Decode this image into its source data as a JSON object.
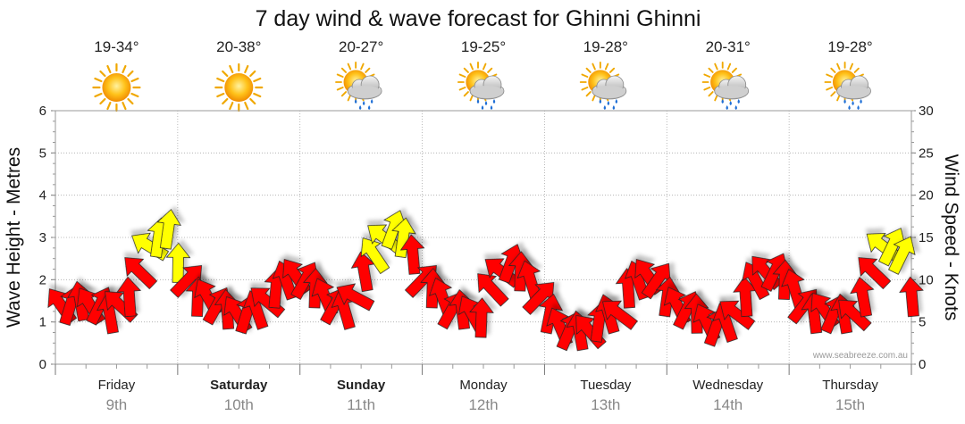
{
  "title": "7 day wind & wave forecast for Ghinni Ghinni",
  "credit": "www.seabreeze.com.au",
  "days": [
    {
      "day": "Friday",
      "date": "9th",
      "temp": "19-34°",
      "icon": "sunny-icon",
      "bold": false
    },
    {
      "day": "Saturday",
      "date": "10th",
      "temp": "20-38°",
      "icon": "sunny-icon",
      "bold": true
    },
    {
      "day": "Sunday",
      "date": "11th",
      "temp": "20-27°",
      "icon": "sun-cloud-rain-icon",
      "bold": true
    },
    {
      "day": "Monday",
      "date": "12th",
      "temp": "19-25°",
      "icon": "sun-cloud-rain-icon",
      "bold": false
    },
    {
      "day": "Tuesday",
      "date": "13th",
      "temp": "19-28°",
      "icon": "sun-cloud-rain-icon",
      "bold": false
    },
    {
      "day": "Wednesday",
      "date": "14th",
      "temp": "20-31°",
      "icon": "sun-cloud-rain-icon",
      "bold": false
    },
    {
      "day": "Thursday",
      "date": "15th",
      "temp": "19-28°",
      "icon": "sun-cloud-rain-icon",
      "bold": false
    }
  ],
  "colors": {
    "arrow_low": "#ff0000",
    "arrow_high": "#ffff00",
    "grid": "#999999"
  },
  "chart_data": {
    "type": "line",
    "title": "7 day wind & wave forecast for Ghinni Ghinni",
    "ylabel_left": "Wave Height - Metres",
    "ylabel_right": "Wind Speed - Knots",
    "ylim_left": [
      0,
      6
    ],
    "ylim_right": [
      0,
      30
    ],
    "yticks_left": [
      "0",
      "1",
      "2",
      "3",
      "4",
      "5",
      "6"
    ],
    "yticks_right": [
      "0",
      "5",
      "10",
      "15",
      "20",
      "25",
      "30"
    ],
    "grid": true,
    "series": [
      {
        "name": "Wind Speed - Knots",
        "axis": "right",
        "x_days": [
          0.0,
          0.08,
          0.16,
          0.24,
          0.32,
          0.4,
          0.48,
          0.56,
          0.64,
          0.72,
          0.8,
          0.88,
          0.96,
          1.04,
          1.12,
          1.2,
          1.28,
          1.36,
          1.44,
          1.52,
          1.6,
          1.68,
          1.76,
          1.84,
          1.92,
          2.0,
          2.08,
          2.16,
          2.24,
          2.32,
          2.4,
          2.48,
          2.56,
          2.64,
          2.72,
          2.8,
          2.88,
          2.96,
          3.04,
          3.12,
          3.2,
          3.28,
          3.36,
          3.44,
          3.52,
          3.6,
          3.68,
          3.76,
          3.84,
          3.92,
          4.0,
          4.08,
          4.16,
          4.24,
          4.32,
          4.4,
          4.48,
          4.56,
          4.64,
          4.72,
          4.8,
          4.88,
          4.96,
          5.04,
          5.12,
          5.2,
          5.28,
          5.36,
          5.44,
          5.52,
          5.6,
          5.68,
          5.76,
          5.84,
          5.92,
          6.0,
          6.08,
          6.16,
          6.24,
          6.32,
          6.4,
          6.48,
          6.56,
          6.64,
          6.72,
          6.8,
          6.88,
          6.96
        ],
        "values": [
          7,
          7,
          7.5,
          7,
          7,
          6,
          7,
          8,
          11,
          14,
          15,
          16,
          12,
          10,
          8,
          8,
          7,
          6.5,
          6,
          6,
          6.5,
          7.5,
          9,
          10,
          10.5,
          10,
          9,
          8,
          7,
          6.5,
          8,
          11,
          13,
          15,
          16,
          15,
          13,
          10,
          9,
          8,
          6.5,
          6.5,
          6,
          5.5,
          9,
          11,
          12,
          11,
          10,
          8,
          6,
          4.5,
          4,
          4,
          4,
          5,
          6,
          6,
          9,
          10,
          10.5,
          10,
          8,
          7,
          6.5,
          6,
          5,
          4.5,
          5,
          6,
          8,
          10,
          11,
          11,
          10,
          9,
          7,
          6,
          6.5,
          6,
          6,
          6,
          8,
          11,
          14,
          14,
          13,
          8
        ],
        "colors": [
          "r",
          "r",
          "r",
          "r",
          "r",
          "r",
          "r",
          "r",
          "r",
          "y",
          "y",
          "y",
          "y",
          "r",
          "r",
          "r",
          "r",
          "r",
          "r",
          "r",
          "r",
          "r",
          "r",
          "r",
          "r",
          "r",
          "r",
          "r",
          "r",
          "r",
          "r",
          "r",
          "y",
          "y",
          "y",
          "y",
          "r",
          "r",
          "r",
          "r",
          "r",
          "r",
          "r",
          "r",
          "r",
          "r",
          "r",
          "r",
          "r",
          "r",
          "r",
          "r",
          "r",
          "r",
          "r",
          "r",
          "r",
          "r",
          "r",
          "r",
          "r",
          "r",
          "r",
          "r",
          "r",
          "r",
          "r",
          "r",
          "r",
          "r",
          "r",
          "r",
          "r",
          "r",
          "r",
          "r",
          "r",
          "r",
          "r",
          "r",
          "r",
          "r",
          "r",
          "r",
          "y",
          "y",
          "y",
          "r"
        ]
      }
    ]
  }
}
